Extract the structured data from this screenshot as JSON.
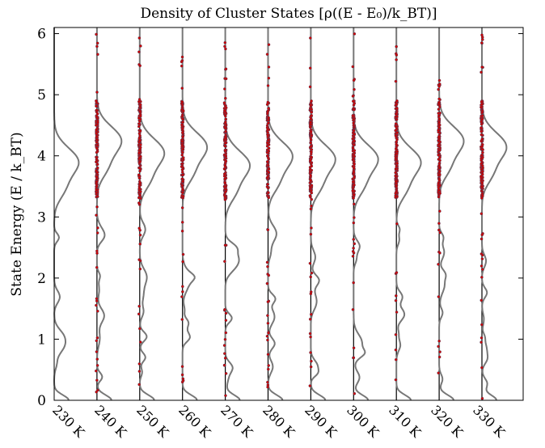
{
  "chart_data": {
    "type": "violin-density",
    "title": "Density of Cluster States [ρ((E - E₀)/k_BT)]",
    "ylabel": "State Energy (E / k_BT)",
    "ylim": [
      0,
      6.1
    ],
    "yticks": [
      0,
      1,
      2,
      3,
      4,
      5,
      6
    ],
    "categories": [
      "230 K",
      "240 K",
      "250 K",
      "260 K",
      "270 K",
      "280 K",
      "290 K",
      "300 K",
      "310 K",
      "320 K",
      "330 K"
    ],
    "peak_energy": [
      3.9,
      4.25,
      4.05,
      4.15,
      3.85,
      4.0,
      3.95,
      3.95,
      3.9,
      4.25,
      4.15
    ],
    "colors": {
      "curve": "#777777",
      "points": "#cc0000",
      "axis": "#000000"
    }
  }
}
